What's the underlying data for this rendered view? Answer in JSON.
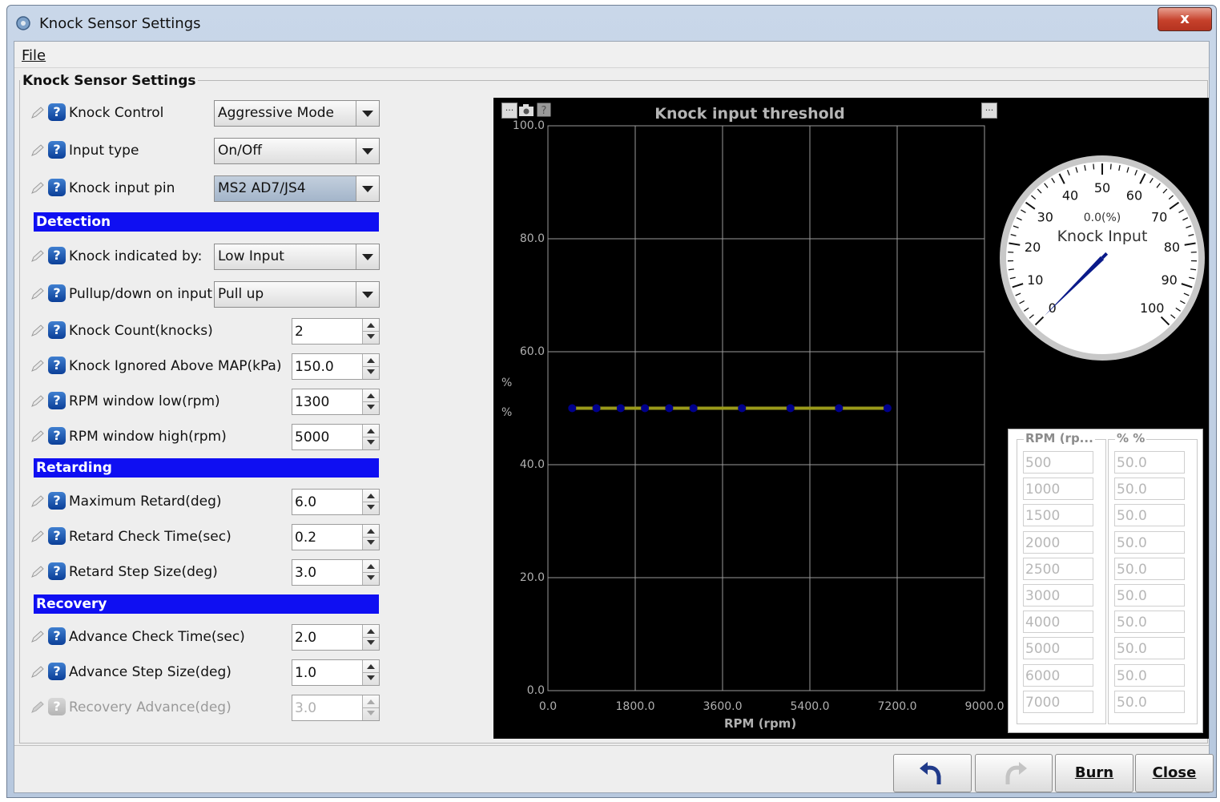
{
  "window": {
    "title": "Knock Sensor Settings",
    "close_label": "x"
  },
  "menu": {
    "file": "File"
  },
  "group": {
    "title": "Knock Sensor Settings"
  },
  "fields": {
    "knock_control": {
      "label": "Knock Control",
      "value": "Aggressive Mode"
    },
    "input_type": {
      "label": "Input type",
      "value": "On/Off"
    },
    "knock_input_pin": {
      "label": "Knock input pin",
      "value": "MS2 AD7/JS4"
    },
    "knock_indicated_by": {
      "label": "Knock indicated by:",
      "value": "Low Input"
    },
    "pullup": {
      "label": "Pullup/down on input",
      "value": "Pull up"
    },
    "knock_count": {
      "label": "Knock Count(knocks)",
      "value": "2"
    },
    "knock_ignored": {
      "label": "Knock Ignored Above MAP(kPa)",
      "value": "150.0"
    },
    "rpm_low": {
      "label": "RPM window low(rpm)",
      "value": "1300"
    },
    "rpm_high": {
      "label": "RPM window high(rpm)",
      "value": "5000"
    },
    "max_retard": {
      "label": "Maximum Retard(deg)",
      "value": "6.0"
    },
    "retard_check": {
      "label": "Retard Check Time(sec)",
      "value": "0.2"
    },
    "retard_step": {
      "label": "Retard Step Size(deg)",
      "value": "3.0"
    },
    "advance_check": {
      "label": "Advance Check Time(sec)",
      "value": "2.0"
    },
    "advance_step": {
      "label": "Advance Step Size(deg)",
      "value": "1.0"
    },
    "recovery_advance": {
      "label": "Recovery Advance(deg)",
      "value": "3.0"
    }
  },
  "sections": {
    "detection": "Detection",
    "retarding": "Retarding",
    "recovery": "Recovery"
  },
  "chart_data": {
    "type": "line",
    "title": "Knock input threshold",
    "xlabel": "RPM (rpm)",
    "ylabel": "%",
    "ylabel2": "%",
    "xlim": [
      0,
      9000
    ],
    "ylim": [
      0,
      100
    ],
    "xticks": [
      "0.0",
      "1800.0",
      "3600.0",
      "5400.0",
      "7200.0",
      "9000.0"
    ],
    "yticks": [
      "100.0",
      "80.0",
      "60.0",
      "40.0",
      "20.0",
      "0.0"
    ],
    "x": [
      500,
      1000,
      1500,
      2000,
      2500,
      3000,
      4000,
      5000,
      6000,
      7000
    ],
    "y": [
      50.0,
      50.0,
      50.0,
      50.0,
      50.0,
      50.0,
      50.0,
      50.0,
      50.0,
      50.0
    ],
    "line_color": "#9a9a1a",
    "point_color": "#00008b",
    "grid": true
  },
  "gauge": {
    "title": "Knock Input",
    "readout": "0.0(%)",
    "value": 0.0,
    "min": 0,
    "max": 100,
    "labels": [
      "0",
      "10",
      "20",
      "30",
      "40",
      "50",
      "60",
      "70",
      "80",
      "90",
      "100"
    ]
  },
  "table": {
    "col1_header": "RPM (rp...",
    "col2_header": "% %",
    "rpm": [
      "500",
      "1000",
      "1500",
      "2000",
      "2500",
      "3000",
      "4000",
      "5000",
      "6000",
      "7000"
    ],
    "pct": [
      "50.0",
      "50.0",
      "50.0",
      "50.0",
      "50.0",
      "50.0",
      "50.0",
      "50.0",
      "50.0",
      "50.0"
    ]
  },
  "buttons": {
    "burn": "Burn",
    "close": "Close"
  },
  "mini_buttons": {
    "menu": "...",
    "more": "..."
  },
  "colors": {
    "section": "#0f0ff2",
    "chart_bg": "#000000",
    "help_icon": "#1a5bbf"
  }
}
